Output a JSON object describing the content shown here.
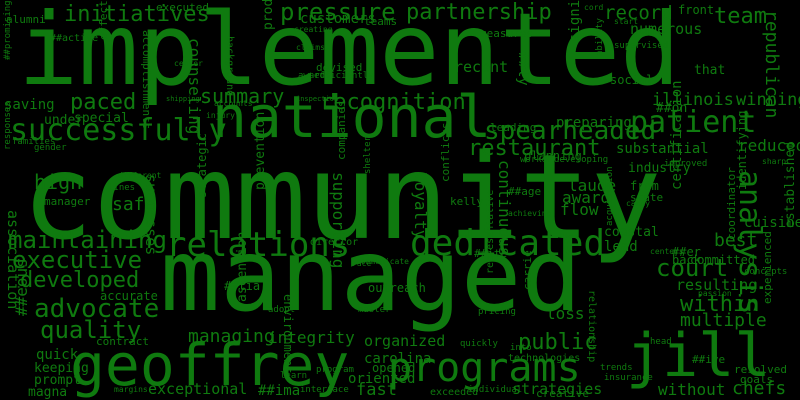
{
  "colors": {
    "background": "#000000",
    "word": "#0f7a0f"
  },
  "words": [
    "community",
    "implemented",
    "managed",
    "national",
    "geoffrey",
    "jill",
    "programs",
    "relations",
    "dedicated",
    "successfully",
    "patient",
    "analysis",
    "pressure",
    "partnership",
    "initiatives",
    "team",
    "record",
    "spearheaded",
    "summary",
    "recognition",
    "executive",
    "maintaining",
    "advocate",
    "quality",
    "developed",
    "court",
    "public",
    "restaurant",
    "integrity",
    "exceptional",
    "counseling",
    "within",
    "multiple",
    "paced",
    "high",
    "safe",
    "managing",
    "laude",
    "award",
    "flow",
    "continuous",
    "loyalty",
    "supporting",
    "organized",
    "carolina",
    "oriented",
    "fast",
    "strategies",
    "without",
    "chefs",
    "illinois",
    "winning",
    "republican",
    "reduced",
    "substantial",
    "preparing",
    "leading",
    "customers",
    "recent",
    "numerous",
    "front",
    "certification",
    "best",
    "resulting",
    "lead",
    "coastal",
    "loss",
    "outreach",
    "accurate",
    "contract",
    "quick",
    "keeping",
    "prompt",
    "magna",
    "association",
    "##eous",
    "##ima",
    "##tia",
    "##ly",
    "##on",
    "##age",
    "##er",
    "##ive",
    "##ite",
    "alumni",
    "special",
    "saving",
    "under",
    "manager",
    "successes",
    "prevention",
    "strategic",
    "ascension",
    "environment",
    "committed",
    "cuisine",
    "established",
    "identifying",
    "coordinator",
    "planning",
    "industry",
    "state",
    "from",
    "significant",
    "social",
    "that",
    "measures",
    "teams",
    "executed",
    "devised",
    "effective",
    "accomplishments",
    "background",
    "productive",
    "efficiently",
    "awards",
    "claims",
    "creating",
    "director",
    "communicate",
    "relationship",
    "representative",
    "technologies",
    "exceeded",
    "creative",
    "insurance",
    "goals",
    "resolved",
    "experienced",
    "opened",
    "interface",
    "learn",
    "program",
    "master",
    "pricing",
    "adopt",
    "improved",
    "developing",
    "ability",
    "supervised",
    "acquisition",
    "individual",
    "trends",
    "quickly",
    "into",
    "head",
    "back",
    "kelly",
    "carrie",
    "companies",
    "shelter",
    "conflicts",
    "inspection",
    "accounts",
    "injury",
    "shipping",
    "margins",
    "worker",
    "achieving",
    "centers",
    "concepts",
    "passion",
    "sharp",
    "lines",
    "different",
    "gender",
    "families",
    "responses",
    "##promising",
    "##active",
    "cord",
    "start",
    "center",
    "race",
    "candy",
    "kitchen"
  ]
}
